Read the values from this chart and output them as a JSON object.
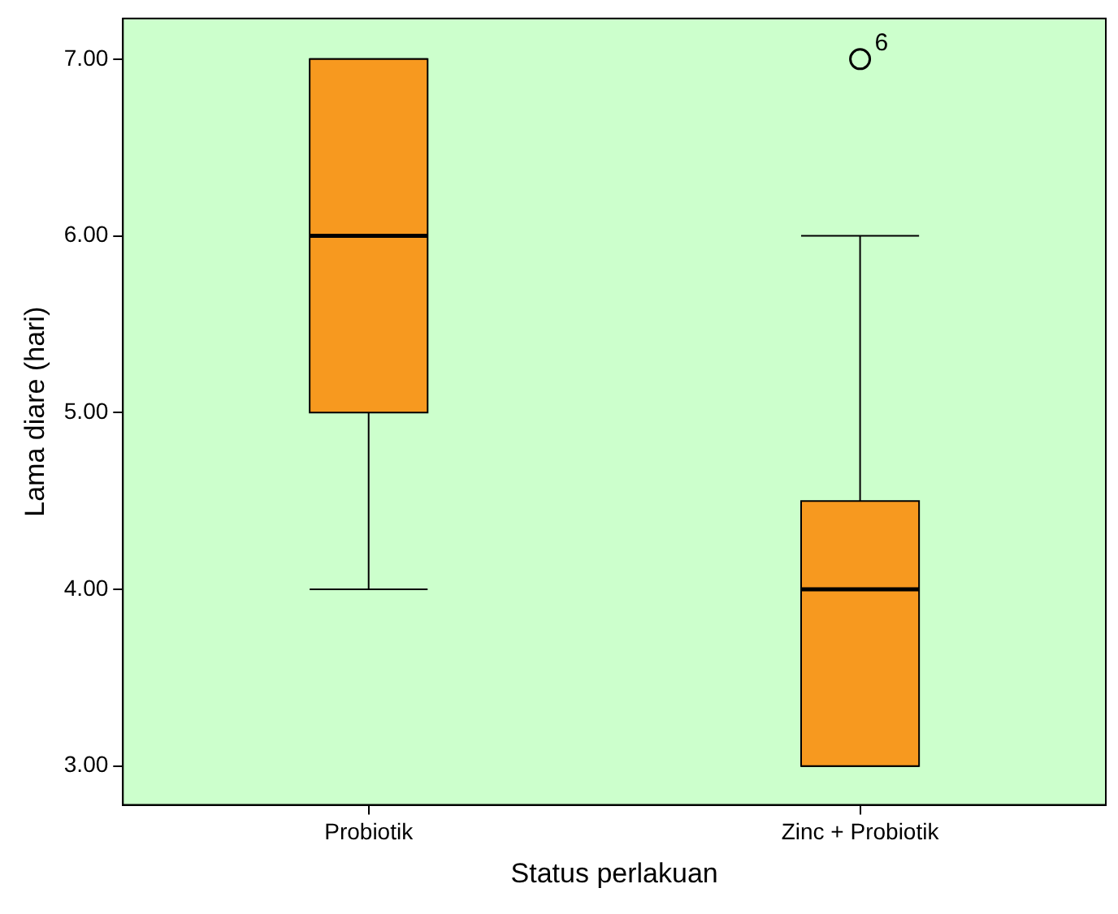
{
  "chart_data": {
    "type": "box",
    "xlabel": "Status perlakuan",
    "ylabel": "Lama diare (hari)",
    "categories": [
      "Probiotik",
      "Zinc + Probiotik"
    ],
    "color": "#f7991f",
    "boxes": [
      {
        "low": 4,
        "q1": 5,
        "median": 6,
        "q3": 7,
        "high": 7
      },
      {
        "low": 3,
        "q1": 3,
        "median": 4,
        "q3": 4.5,
        "high": 6,
        "outliers": [
          7
        ]
      }
    ],
    "ylim": [
      2.78,
      7.23
    ],
    "yticks": [
      {
        "value": 3,
        "label": "3.00"
      },
      {
        "value": 4,
        "label": "4.00"
      },
      {
        "value": 5,
        "label": "5.00"
      },
      {
        "value": 6,
        "label": "6.00"
      },
      {
        "value": 7,
        "label": "7.00"
      }
    ],
    "annotations": [
      "6"
    ],
    "marker": "circle",
    "grid": false,
    "legend": false
  }
}
